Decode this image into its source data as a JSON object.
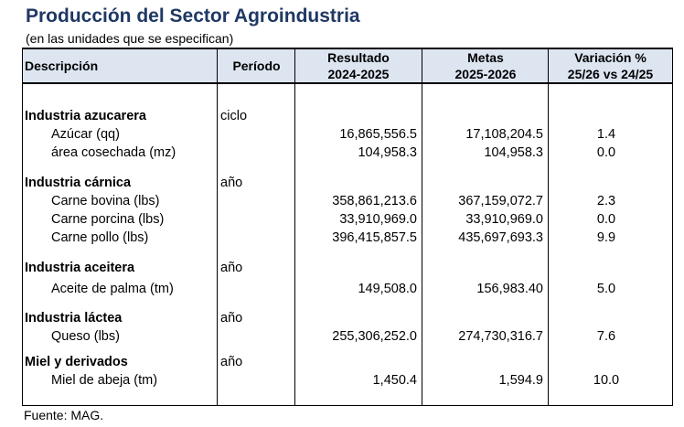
{
  "title": "Producción del Sector Agroindustria",
  "subtitle": "(en las unidades que se especifican)",
  "headers": {
    "descripcion": "Descripción",
    "periodo": "Período",
    "resultado_1": "Resultado",
    "resultado_2": "2024-2025",
    "metas_1": "Metas",
    "metas_2": "2025-2026",
    "variacion_1": "Variación %",
    "variacion_2": "25/26 vs 24/25"
  },
  "rows": [
    {
      "desc": "Industria azucarera",
      "periodo": "ciclo",
      "resultado": "",
      "metas": "",
      "variacion": ""
    },
    {
      "desc": "Azúcar (qq)",
      "periodo": "",
      "resultado": "16,865,556.5",
      "metas": "17,108,204.5",
      "variacion": "1.4"
    },
    {
      "desc": "área cosechada (mz)",
      "periodo": "",
      "resultado": "104,958.3",
      "metas": "104,958.3",
      "variacion": "0.0"
    },
    {
      "desc": "Industria cárnica",
      "periodo": "año",
      "resultado": "",
      "metas": "",
      "variacion": ""
    },
    {
      "desc": "Carne bovina (lbs)",
      "periodo": "",
      "resultado": "358,861,213.6",
      "metas": "367,159,072.7",
      "variacion": "2.3"
    },
    {
      "desc": "Carne porcina (lbs)",
      "periodo": "",
      "resultado": "33,910,969.0",
      "metas": "33,910,969.0",
      "variacion": "0.0"
    },
    {
      "desc": "Carne pollo (lbs)",
      "periodo": "",
      "resultado": "396,415,857.5",
      "metas": "435,697,693.3",
      "variacion": "9.9"
    },
    {
      "desc": "Industria aceitera",
      "periodo": "año",
      "resultado": "",
      "metas": "",
      "variacion": ""
    },
    {
      "desc": "Aceite de palma (tm)",
      "periodo": "",
      "resultado": "149,508.0",
      "metas": "156,983.40",
      "variacion": "5.0"
    },
    {
      "desc": "Industria láctea",
      "periodo": "año",
      "resultado": "",
      "metas": "",
      "variacion": ""
    },
    {
      "desc": "Queso (lbs)",
      "periodo": "",
      "resultado": "255,306,252.0",
      "metas": "274,730,316.7",
      "variacion": "7.6"
    },
    {
      "desc": "Miel y derivados",
      "periodo": "año",
      "resultado": "",
      "metas": "",
      "variacion": ""
    },
    {
      "desc": "Miel de abeja (tm)",
      "periodo": "",
      "resultado": "1,450.4",
      "metas": "1,594.9",
      "variacion": "10.0"
    }
  ],
  "source": "Fuente: MAG."
}
